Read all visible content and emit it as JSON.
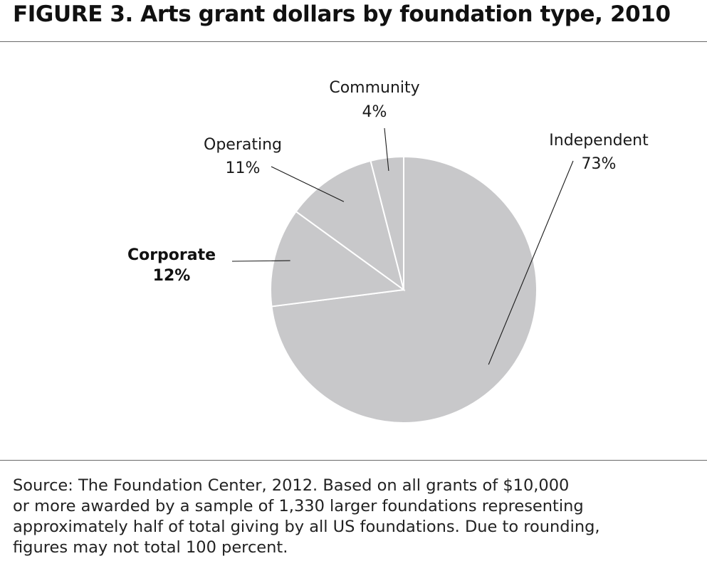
{
  "figure": {
    "title": "FIGURE 3. Arts grant dollars by foundation type, 2010"
  },
  "chart_data": {
    "type": "pie",
    "title": "FIGURE 3. Arts grant dollars by foundation type, 2010",
    "start_angle_deg": 0,
    "direction": "clockwise",
    "slice_color": "#c8c8ca",
    "slice_border_color": "#ffffff",
    "slices": [
      {
        "label": "Independent",
        "value": 73,
        "value_label": "73%",
        "emphasis": false
      },
      {
        "label": "Corporate",
        "value": 12,
        "value_label": "12%",
        "emphasis": true
      },
      {
        "label": "Operating",
        "value": 11,
        "value_label": "11%",
        "emphasis": false
      },
      {
        "label": "Community",
        "value": 4,
        "value_label": "4%",
        "emphasis": false
      }
    ]
  },
  "source_note": "Source: The Foundation Center, 2012. Based on all grants of $10,000\nor more awarded by a sample of 1,330 larger foundations representing\napproximately half of total giving by all US foundations. Due to rounding,\nfigures may not total 100 percent."
}
